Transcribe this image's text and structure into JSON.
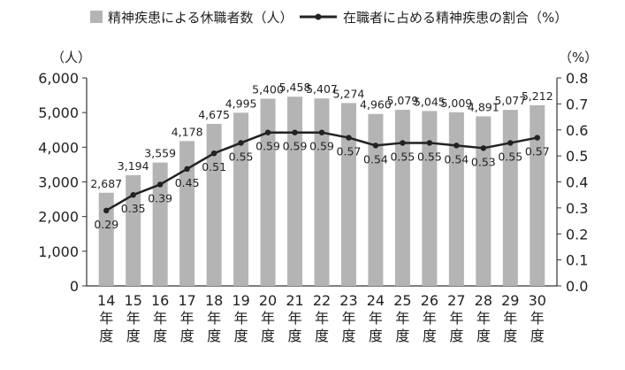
{
  "legend": {
    "bar_label": "精神疾患による休職者数（人）",
    "line_label": "在職者に占める精神疾患の割合（%）"
  },
  "chart_data": {
    "type": "bar+line",
    "categories": [
      "14\n年\n度",
      "15\n年\n度",
      "16\n年\n度",
      "17\n年\n度",
      "18\n年\n度",
      "19\n年\n度",
      "20\n年\n度",
      "21\n年\n度",
      "22\n年\n度",
      "23\n年\n度",
      "24\n年\n度",
      "25\n年\n度",
      "26\n年\n度",
      "27\n年\n度",
      "28\n年\n度",
      "29\n年\n度",
      "30\n年\n度"
    ],
    "series": [
      {
        "name": "精神疾患による休職者数（人）",
        "kind": "bar",
        "axis": "left",
        "values": [
          2687,
          3194,
          3559,
          4178,
          4675,
          4995,
          5400,
          5458,
          5407,
          5274,
          4960,
          5079,
          5045,
          5009,
          4891,
          5077,
          5212
        ],
        "labels": [
          "2,687",
          "3,194",
          "3,559",
          "4,178",
          "4,675",
          "4,995",
          "5,400",
          "5,458",
          "5,407",
          "5,274",
          "4,960",
          "5,079",
          "5,045",
          "5,009",
          "4,891",
          "5,077",
          "5,212"
        ]
      },
      {
        "name": "在職者に占める精神疾患の割合（%）",
        "kind": "line",
        "axis": "right",
        "values": [
          0.29,
          0.35,
          0.39,
          0.45,
          0.51,
          0.55,
          0.59,
          0.59,
          0.59,
          0.57,
          0.54,
          0.55,
          0.55,
          0.54,
          0.53,
          0.55,
          0.57
        ],
        "labels": [
          "0.29",
          "0.35",
          "0.39",
          "0.45",
          "0.51",
          "0.55",
          "0.59",
          "0.59",
          "0.59",
          "0.57",
          "0.54",
          "0.55",
          "0.55",
          "0.54",
          "0.53",
          "0.55",
          "0.57"
        ]
      }
    ],
    "y_left": {
      "unit_label": "（人）",
      "ylim": [
        0,
        6000
      ],
      "ticks": [
        0,
        1000,
        2000,
        3000,
        4000,
        5000,
        6000
      ],
      "tick_labels": [
        "0",
        "1,000",
        "2,000",
        "3,000",
        "4,000",
        "5,000",
        "6,000"
      ]
    },
    "y_right": {
      "unit_label": "（%）",
      "ylim": [
        0,
        0.8
      ],
      "ticks": [
        0,
        0.1,
        0.2,
        0.3,
        0.4,
        0.5,
        0.6,
        0.7,
        0.8
      ],
      "tick_labels": [
        "0.0",
        "0.1",
        "0.2",
        "0.3",
        "0.4",
        "0.5",
        "0.6",
        "0.7",
        "0.8"
      ]
    },
    "grid": false,
    "legend_position": "top",
    "colors": {
      "bar": "#b4b4b4",
      "line": "#222222",
      "axis": "#333333"
    }
  }
}
